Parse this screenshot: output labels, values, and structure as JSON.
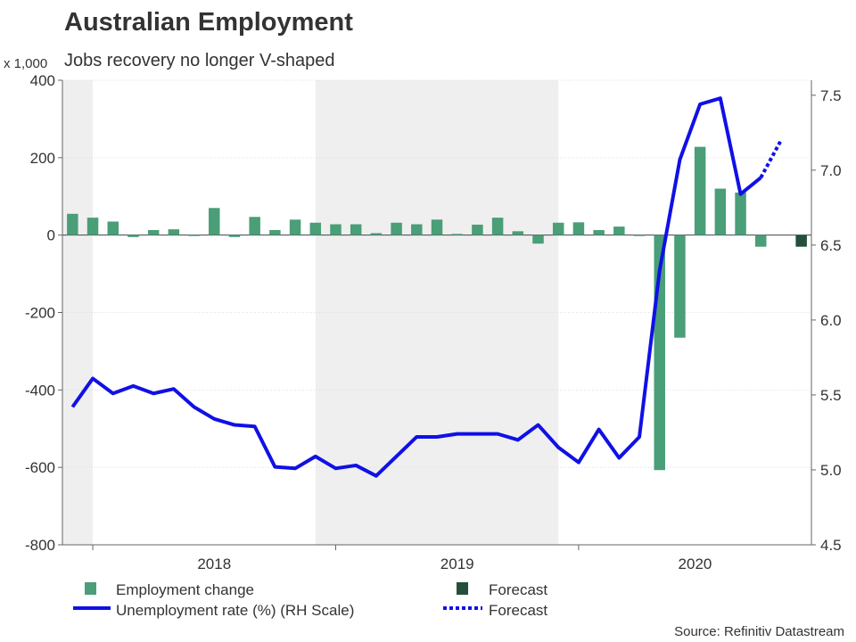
{
  "chart_data": {
    "type": "bar+line",
    "title": "Australian Employment",
    "subtitle": "Jobs recovery no longer V-shaped",
    "y_left_unit": "x 1,000",
    "y_left_lim": [
      -800,
      400
    ],
    "y_left_ticks": [
      "400",
      "200",
      "0",
      "-200",
      "-400",
      "-600",
      "-800"
    ],
    "y_left_tick_values": [
      400,
      200,
      0,
      -200,
      -400,
      -600,
      -800
    ],
    "y_right_lim": [
      4.5,
      7.6
    ],
    "y_right_ticks": [
      "7.5",
      "7.0",
      "6.5",
      "6.0",
      "5.5",
      "5.0",
      "4.5"
    ],
    "y_right_tick_values": [
      7.5,
      7.0,
      6.5,
      6.0,
      5.5,
      5.0,
      4.5
    ],
    "x_labels": [
      "2018",
      "2019",
      "2020"
    ],
    "months_count": 37,
    "shaded_periods": [
      [
        0,
        1.5
      ],
      [
        12.5,
        24.5
      ]
    ],
    "year_boundaries": [
      1.5,
      13.5,
      25.5
    ],
    "employment_change": [
      55,
      45,
      35,
      -5,
      13,
      15,
      0,
      70,
      -5,
      47,
      13,
      40,
      32,
      28,
      28,
      5,
      32,
      28,
      40,
      3,
      27,
      45,
      10,
      -22,
      32,
      33,
      13,
      22,
      -2,
      -607,
      -265,
      228,
      120,
      110,
      -30
    ],
    "forecast_employment": [
      {
        "index": 36,
        "value": -30
      }
    ],
    "unemployment_rate": [
      5.42,
      5.61,
      5.51,
      5.56,
      5.51,
      5.54,
      5.42,
      5.34,
      5.3,
      5.29,
      5.02,
      5.01,
      5.09,
      5.01,
      5.03,
      4.96,
      5.09,
      5.22,
      5.22,
      5.24,
      5.24,
      5.24,
      5.2,
      5.3,
      5.15,
      5.05,
      5.27,
      5.08,
      5.22,
      6.33,
      7.07,
      7.44,
      7.48,
      6.84,
      6.95
    ],
    "forecast_unemployment": [
      [
        34,
        6.95
      ],
      [
        35,
        7.2
      ]
    ],
    "colors": {
      "bar": "#4a9e78",
      "forecast_bar": "#22503a",
      "line": "#1010e6",
      "shade": "#efefef",
      "grid": "#dedede"
    },
    "legend": {
      "employment": "Employment change",
      "forecast_bar": "Forecast",
      "unemployment": "Unemployment rate (%) (RH Scale)",
      "forecast_line": "Forecast"
    },
    "source": "Source: Refinitiv Datastream"
  }
}
